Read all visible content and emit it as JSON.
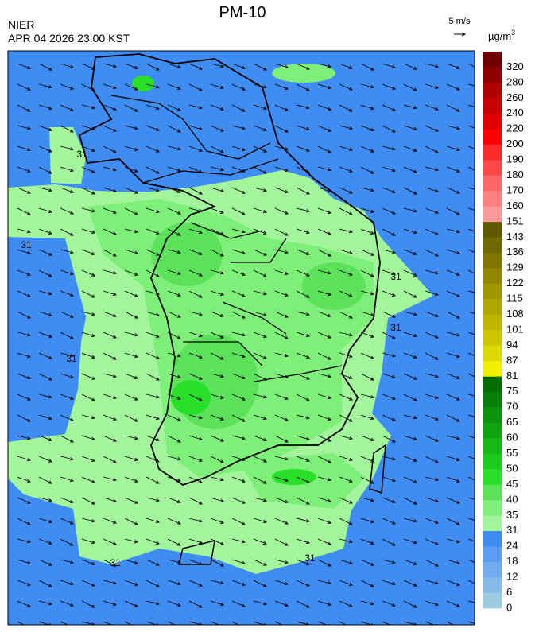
{
  "header": {
    "title": "PM-10",
    "agency": "NIER",
    "datetime": "APR 04 2026 23:00 KST",
    "wind_scale": "5 m/s",
    "unit": {
      "base": "µg/m",
      "sup": "3"
    }
  },
  "map": {
    "contour_labels": [
      "31",
      "31",
      "31",
      "31",
      "31",
      "31",
      "31"
    ]
  },
  "colorbar": {
    "levels": [
      0,
      6,
      12,
      18,
      24,
      31,
      35,
      40,
      45,
      50,
      55,
      60,
      65,
      70,
      75,
      81,
      87,
      94,
      101,
      108,
      115,
      122,
      129,
      136,
      143,
      151,
      160,
      170,
      180,
      190,
      200,
      220,
      240,
      260,
      280,
      320
    ],
    "colors": [
      "#9ecae1",
      "#86bbe8",
      "#70acee",
      "#5a9df2",
      "#3f8cf3",
      "#a3f59c",
      "#7eef78",
      "#5ce25a",
      "#28e028",
      "#1ccc1c",
      "#16b816",
      "#10a510",
      "#0c920c",
      "#087f08",
      "#046c04",
      "#f0f000",
      "#dcd800",
      "#cfc600",
      "#c0b600",
      "#b0a600",
      "#a09600",
      "#908600",
      "#807600",
      "#706800",
      "#605800",
      "#ff9a9a",
      "#ff8080",
      "#ff6868",
      "#ff4848",
      "#ff2a2a",
      "#ff0000",
      "#e00000",
      "#c80000",
      "#b00000",
      "#900000",
      "#700000"
    ]
  }
}
